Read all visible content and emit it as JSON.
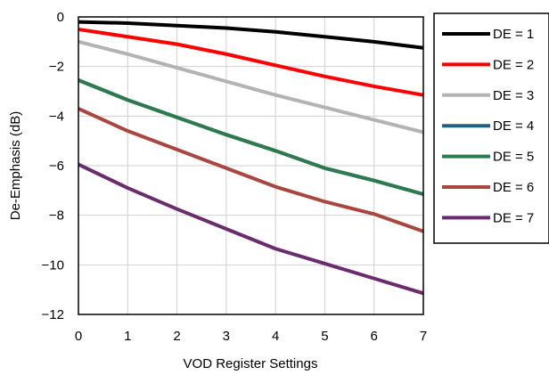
{
  "chart_data": {
    "type": "line",
    "title": "",
    "xlabel": "VOD Register Settings",
    "ylabel": "De-Emphasis (dB)",
    "xlim": [
      0,
      7
    ],
    "ylim": [
      -12,
      0
    ],
    "x_ticks": [
      "0",
      "1",
      "2",
      "3",
      "4",
      "5",
      "6",
      "7"
    ],
    "y_ticks": [
      "0",
      "−2",
      "−4",
      "−6",
      "−8",
      "−10",
      "−12"
    ],
    "grid": true,
    "legend_position": "right",
    "x": [
      0,
      1,
      2,
      3,
      4,
      5,
      6,
      7
    ],
    "series": [
      {
        "name": "DE = 1",
        "color": "#000000",
        "values": [
          -0.2,
          -0.25,
          -0.35,
          -0.45,
          -0.6,
          -0.8,
          -1.0,
          -1.25
        ]
      },
      {
        "name": "DE = 2",
        "color": "#ff0000",
        "values": [
          -0.5,
          -0.8,
          -1.1,
          -1.5,
          -1.95,
          -2.4,
          -2.8,
          -3.15
        ]
      },
      {
        "name": "DE = 3",
        "color": "#b3b3b3",
        "values": [
          -1.0,
          -1.5,
          -2.05,
          -2.6,
          -3.15,
          -3.65,
          -4.15,
          -4.65
        ]
      },
      {
        "name": "DE = 4",
        "color": "#215f7a",
        "values": [
          -2.55,
          -3.35,
          -4.05,
          -4.75,
          -5.4,
          -6.1,
          -6.6,
          -7.15
        ]
      },
      {
        "name": "DE = 5",
        "color": "#2e7a4f",
        "values": [
          -2.55,
          -3.35,
          -4.05,
          -4.75,
          -5.4,
          -6.1,
          -6.6,
          -7.15
        ]
      },
      {
        "name": "DE = 6",
        "color": "#a9463f",
        "values": [
          -3.7,
          -4.6,
          -5.35,
          -6.1,
          -6.85,
          -7.45,
          -7.95,
          -8.65
        ]
      },
      {
        "name": "DE = 7",
        "color": "#6a2c6e",
        "values": [
          -5.95,
          -6.9,
          -7.75,
          -8.55,
          -9.35,
          -9.95,
          -10.55,
          -11.15
        ]
      }
    ]
  }
}
